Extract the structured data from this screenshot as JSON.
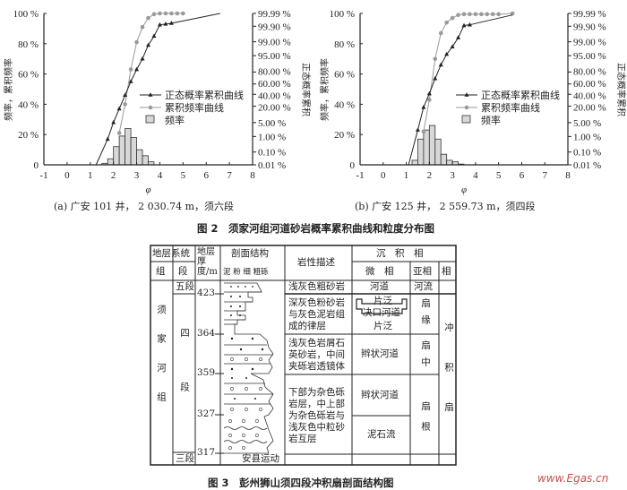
{
  "figure2": {
    "caption": "图 2　须家河组河道砂岩概率累积曲线和粒度分布图"
  },
  "chart_data": [
    {
      "type": "bar+line",
      "panel_caption": "(a) 广安 101 井，  2 030.74 m，须六段",
      "xlabel": "φ",
      "ylabel_left": "频率，累积频率",
      "ylabel_right": "正态概率累积",
      "xlim": [
        -1,
        8
      ],
      "x_ticks": [
        "-1",
        "0",
        "1",
        "2",
        "3",
        "4",
        "5",
        "6",
        "7",
        "8"
      ],
      "ylim": [
        0,
        100
      ],
      "y_ticks_left": [
        "0",
        "20 %",
        "40 %",
        "60 %",
        "80 %",
        "100 %"
      ],
      "y_ticks_right": [
        "0.01 %",
        "0.10 %",
        "1.00 %",
        "5.00 %",
        "20.00 %",
        "40.00 %",
        "60.00 %",
        "80.00 %",
        "95.00 %",
        "99.00 %",
        "99.90 %",
        "99.99 %"
      ],
      "right_scale": "probability",
      "grid": false,
      "legend": [
        "正态概率累积曲线",
        "累积频率曲线",
        "频率"
      ],
      "legend_position": "center-right",
      "series": [
        {
          "name": "频率",
          "kind": "histogram",
          "bin_width": 0.25,
          "x": [
            1.5,
            1.75,
            2,
            2.25,
            2.5,
            2.75,
            3,
            3.25,
            3.5
          ],
          "values": [
            1,
            4,
            12,
            19,
            24,
            18,
            10,
            6,
            2
          ]
        },
        {
          "name": "累积频率曲线",
          "kind": "line",
          "color": "#9a9a9a",
          "x": [
            2.25,
            2.5,
            2.75,
            3,
            3.25,
            3.5,
            3.75,
            4,
            4.25,
            4.5,
            4.75,
            5
          ],
          "values": [
            21,
            40,
            63,
            81,
            91,
            97,
            99.5,
            100,
            100,
            100,
            100,
            100
          ]
        },
        {
          "name": "正态概率累积曲线",
          "kind": "line",
          "color": "#222222",
          "x": [
            1.25,
            1.75,
            2,
            2.25,
            2.5,
            2.75,
            3,
            3.25,
            3.5,
            3.75,
            4,
            4.25,
            4.5,
            6.6
          ],
          "values": [
            0,
            17,
            28,
            37,
            46,
            55,
            63,
            70,
            79,
            85,
            92.5,
            93,
            93.5,
            100
          ],
          "markers": [
            false,
            true,
            true,
            true,
            true,
            true,
            true,
            true,
            true,
            true,
            true,
            true,
            true,
            false
          ]
        }
      ]
    },
    {
      "type": "bar+line",
      "panel_caption": "(b) 广安 125 井，  2 559.73 m，须四段",
      "xlabel": "φ",
      "ylabel_left": "频率，累积频率",
      "ylabel_right": "正态概率累积",
      "xlim": [
        -1,
        8
      ],
      "x_ticks": [
        "-1",
        "0",
        "1",
        "2",
        "3",
        "4",
        "5",
        "6",
        "7",
        "8"
      ],
      "ylim": [
        0,
        100
      ],
      "y_ticks_left": [
        "0",
        "20 %",
        "40 %",
        "60 %",
        "80 %",
        "100 %"
      ],
      "y_ticks_right": [
        "0.01 %",
        "0.10 %",
        "1.00 %",
        "5.00 %",
        "20.00 %",
        "40.00 %",
        "60.00 %",
        "80.00 %",
        "95.00 %",
        "99.00 %",
        "99.90 %",
        "99.99 %"
      ],
      "right_scale": "probability",
      "grid": false,
      "legend": [
        "正态概率累积曲线",
        "累积频率曲线",
        "频率"
      ],
      "legend_position": "center-right",
      "series": [
        {
          "name": "频率",
          "kind": "histogram",
          "bin_width": 0.25,
          "x": [
            1.25,
            1.5,
            1.75,
            2,
            2.25,
            2.5,
            2.75,
            3,
            3.25
          ],
          "values": [
            3,
            17,
            23,
            26,
            17,
            7,
            3,
            2,
            0.5
          ]
        },
        {
          "name": "累积频率曲线",
          "kind": "line",
          "color": "#9a9a9a",
          "x": [
            1.75,
            2,
            2.25,
            2.5,
            2.75,
            3,
            3.25,
            3.5,
            3.75,
            4,
            4.25,
            4.5,
            4.75,
            5,
            5.6
          ],
          "values": [
            22,
            43,
            70,
            87,
            94,
            97,
            99,
            99.5,
            99.5,
            99.5,
            99.5,
            99.5,
            99.5,
            99.5,
            100
          ]
        },
        {
          "name": "正态概率累积曲线",
          "kind": "line",
          "color": "#222222",
          "x": [
            1.1,
            1.5,
            1.75,
            2,
            2.25,
            2.5,
            2.75,
            3,
            3.25,
            3.5,
            3.75,
            5.6
          ],
          "values": [
            0,
            23,
            38,
            47,
            57,
            66,
            73,
            78,
            84,
            92,
            92.5,
            99
          ],
          "markers": [
            false,
            true,
            true,
            true,
            true,
            true,
            true,
            true,
            true,
            true,
            true,
            false
          ]
        }
      ]
    }
  ],
  "figure3": {
    "caption": "图 3　彭州狮山须四段冲积扇剖面结构图",
    "headers": {
      "strat_system": "地层系统",
      "group": "组",
      "member": "段",
      "thickness": "地层厚度/m",
      "profile": "剖面结构",
      "grain_labels": "泥 粉 细 粗砾",
      "lithology": "岩性描述",
      "facies_group": "沉　积　相",
      "microfacies": "微　相",
      "subfacies": "亚相",
      "facies": "相"
    },
    "group_name": "须家河组",
    "members": [
      "五段",
      "四段",
      "三段"
    ],
    "thickness_marks": [
      "423",
      "364",
      "359",
      "327",
      "317"
    ],
    "profile_note": "安县运动",
    "lithology": [
      "浅灰色粗砂岩",
      "深灰色粉砂岩与灰色泥岩组成的律层",
      "浅灰色岩屑石英砂岩，中间夹砾岩透镜体",
      "下部为杂色砾岩层，中上部为杂色砾岩与浅灰色中粒砂岩互层"
    ],
    "microfacies": [
      "河道",
      "片泛",
      "决口河道",
      "片泛",
      "辫状河道",
      "辫状河道",
      "泥石流"
    ],
    "subfacies": [
      "河流",
      "扇缘",
      "扇中",
      "扇根"
    ],
    "facies": "冲积扇"
  },
  "watermark": "www.Egas.cn"
}
